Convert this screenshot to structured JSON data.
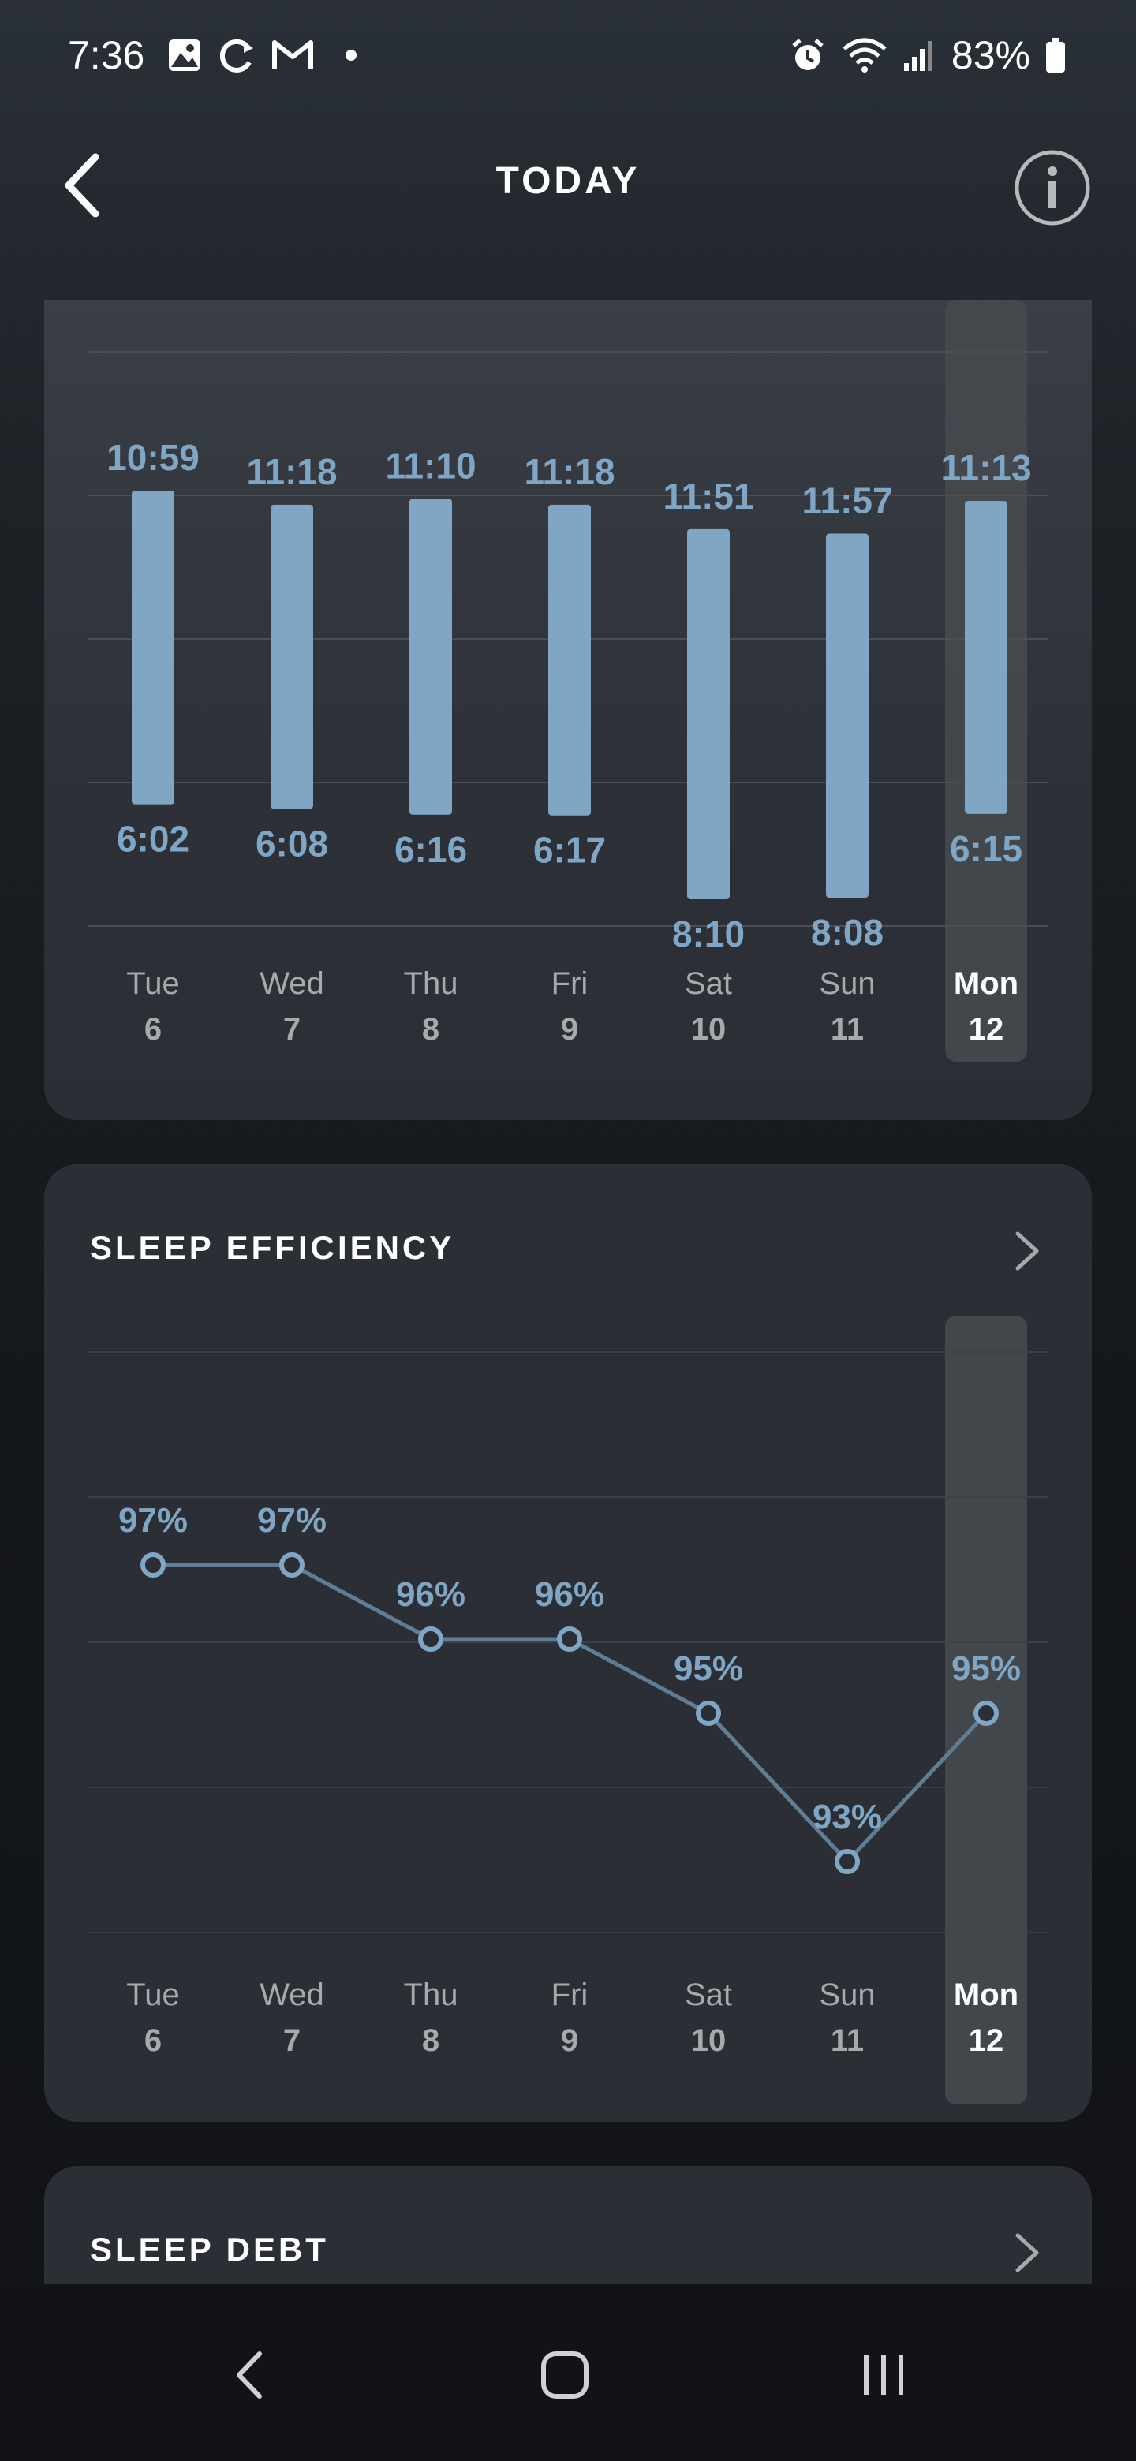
{
  "status_bar": {
    "time": "7:36",
    "battery": "83%",
    "icons_left": [
      "gallery-icon",
      "sync-icon",
      "gmail-icon",
      "notification-dot-icon"
    ],
    "icons_right": [
      "alarm-icon",
      "wifi-icon",
      "signal-icon",
      "battery-icon"
    ]
  },
  "header": {
    "title": "TODAY",
    "back_icon": "chevron-left-icon",
    "info_icon": "info-icon"
  },
  "colors": {
    "accent": "#7fa6c4",
    "highlight_column": "#474b50",
    "card": "#2b2f35",
    "axis_text": "#a7a9ac"
  },
  "sleep_schedule": {
    "chart_data": {
      "type": "bar",
      "categories": [
        "Tue 6",
        "Wed 7",
        "Thu 8",
        "Fri 9",
        "Sat 10",
        "Sun 11",
        "Mon 12"
      ],
      "day_names": [
        "Tue",
        "Wed",
        "Thu",
        "Fri",
        "Sat",
        "Sun",
        "Mon"
      ],
      "day_numbers": [
        "6",
        "7",
        "8",
        "9",
        "10",
        "11",
        "12"
      ],
      "bedtimes": [
        "10:59",
        "11:18",
        "11:10",
        "11:18",
        "11:51",
        "11:57",
        "11:13"
      ],
      "wake_times": [
        "6:02",
        "6:08",
        "6:16",
        "6:17",
        "8:10",
        "8:08",
        "6:15"
      ],
      "selected_index": 6
    }
  },
  "sleep_efficiency": {
    "title": "SLEEP EFFICIENCY",
    "chart_data": {
      "type": "line",
      "categories": [
        "Tue 6",
        "Wed 7",
        "Thu 8",
        "Fri 9",
        "Sat 10",
        "Sun 11",
        "Mon 12"
      ],
      "day_names": [
        "Tue",
        "Wed",
        "Thu",
        "Fri",
        "Sat",
        "Sun",
        "Mon"
      ],
      "day_numbers": [
        "6",
        "7",
        "8",
        "9",
        "10",
        "11",
        "12"
      ],
      "values": [
        97,
        97,
        96,
        96,
        95,
        93,
        95
      ],
      "labels": [
        "97%",
        "97%",
        "96%",
        "96%",
        "95%",
        "93%",
        "95%"
      ],
      "selected_index": 6
    }
  },
  "sleep_debt": {
    "title": "SLEEP DEBT"
  },
  "nav_bar": {
    "back": "nav-back-icon",
    "home": "nav-home-icon",
    "recents": "nav-recents-icon"
  }
}
